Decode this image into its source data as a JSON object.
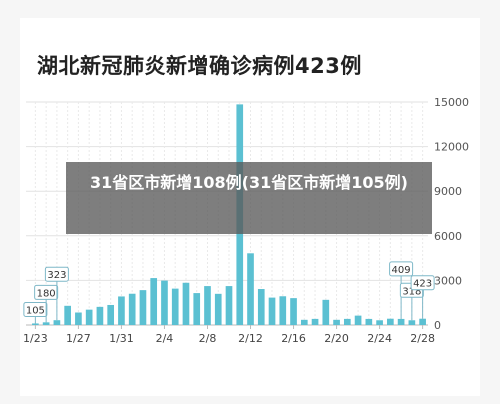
{
  "chart_data": {
    "type": "bar",
    "title": "湖北新冠肺炎新增确诊病例423例",
    "categories": [
      "1/23",
      "1/24",
      "1/25",
      "1/26",
      "1/27",
      "1/28",
      "1/29",
      "1/30",
      "1/31",
      "2/1",
      "2/2",
      "2/3",
      "2/4",
      "2/5",
      "2/6",
      "2/7",
      "2/8",
      "2/9",
      "2/10",
      "2/11",
      "2/12",
      "2/13",
      "2/14",
      "2/15",
      "2/16",
      "2/17",
      "2/18",
      "2/19",
      "2/20",
      "2/21",
      "2/22",
      "2/23",
      "2/24",
      "2/25",
      "2/26",
      "2/27",
      "2/28"
    ],
    "values": [
      105,
      180,
      323,
      1291,
      840,
      1032,
      1220,
      1347,
      1921,
      2103,
      2345,
      3156,
      2987,
      2447,
      2841,
      2147,
      2618,
      2097,
      2618,
      14840,
      4823,
      2420,
      1843,
      1933,
      1807,
      349,
      411,
      1693,
      349,
      411,
      631,
      409,
      318,
      423,
      409,
      318,
      423
    ],
    "x_tick_labels": [
      "1/23",
      "1/27",
      "1/31",
      "2/4",
      "2/8",
      "2/12",
      "2/16",
      "2/20",
      "2/24",
      "2/28"
    ],
    "y_ticks": [
      0,
      3000,
      6000,
      9000,
      12000,
      15000
    ],
    "ylim": [
      0,
      15000
    ],
    "bar_color": "#5bc0d2",
    "gridlines": true,
    "annotations": [
      {
        "category": "1/23",
        "label": "105"
      },
      {
        "category": "1/24",
        "label": "180"
      },
      {
        "category": "1/25",
        "label": "323"
      },
      {
        "category": "2/26",
        "label": "409"
      },
      {
        "category": "2/27",
        "label": "318"
      },
      {
        "category": "2/28",
        "label": "423"
      }
    ]
  },
  "overlay": {
    "caption": "31省区市新增108例(31省区市新增105例)"
  }
}
